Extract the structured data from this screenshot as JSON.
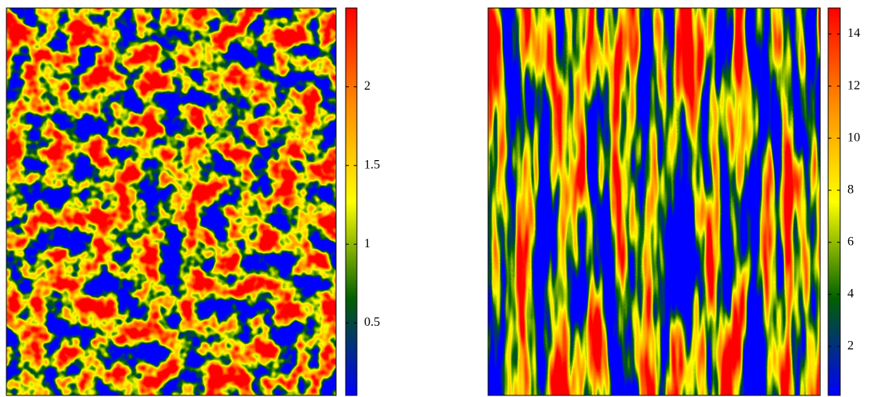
{
  "chart_data": [
    {
      "type": "heatmap",
      "colors": [
        "#0000ff",
        "#006000",
        "#ffff00",
        "#ff8c00",
        "#ff0000"
      ],
      "ylim": [
        0.04,
        2.5
      ],
      "yticks": [
        0.5,
        1,
        1.5,
        2
      ]
    },
    {
      "type": "heatmap",
      "colors": [
        "#0000ff",
        "#006000",
        "#ffff00",
        "#ff8c00",
        "#ff0000"
      ],
      "ylim": [
        0.12,
        15
      ],
      "yticks": [
        2,
        4,
        6,
        8,
        10,
        12,
        14
      ]
    }
  ]
}
